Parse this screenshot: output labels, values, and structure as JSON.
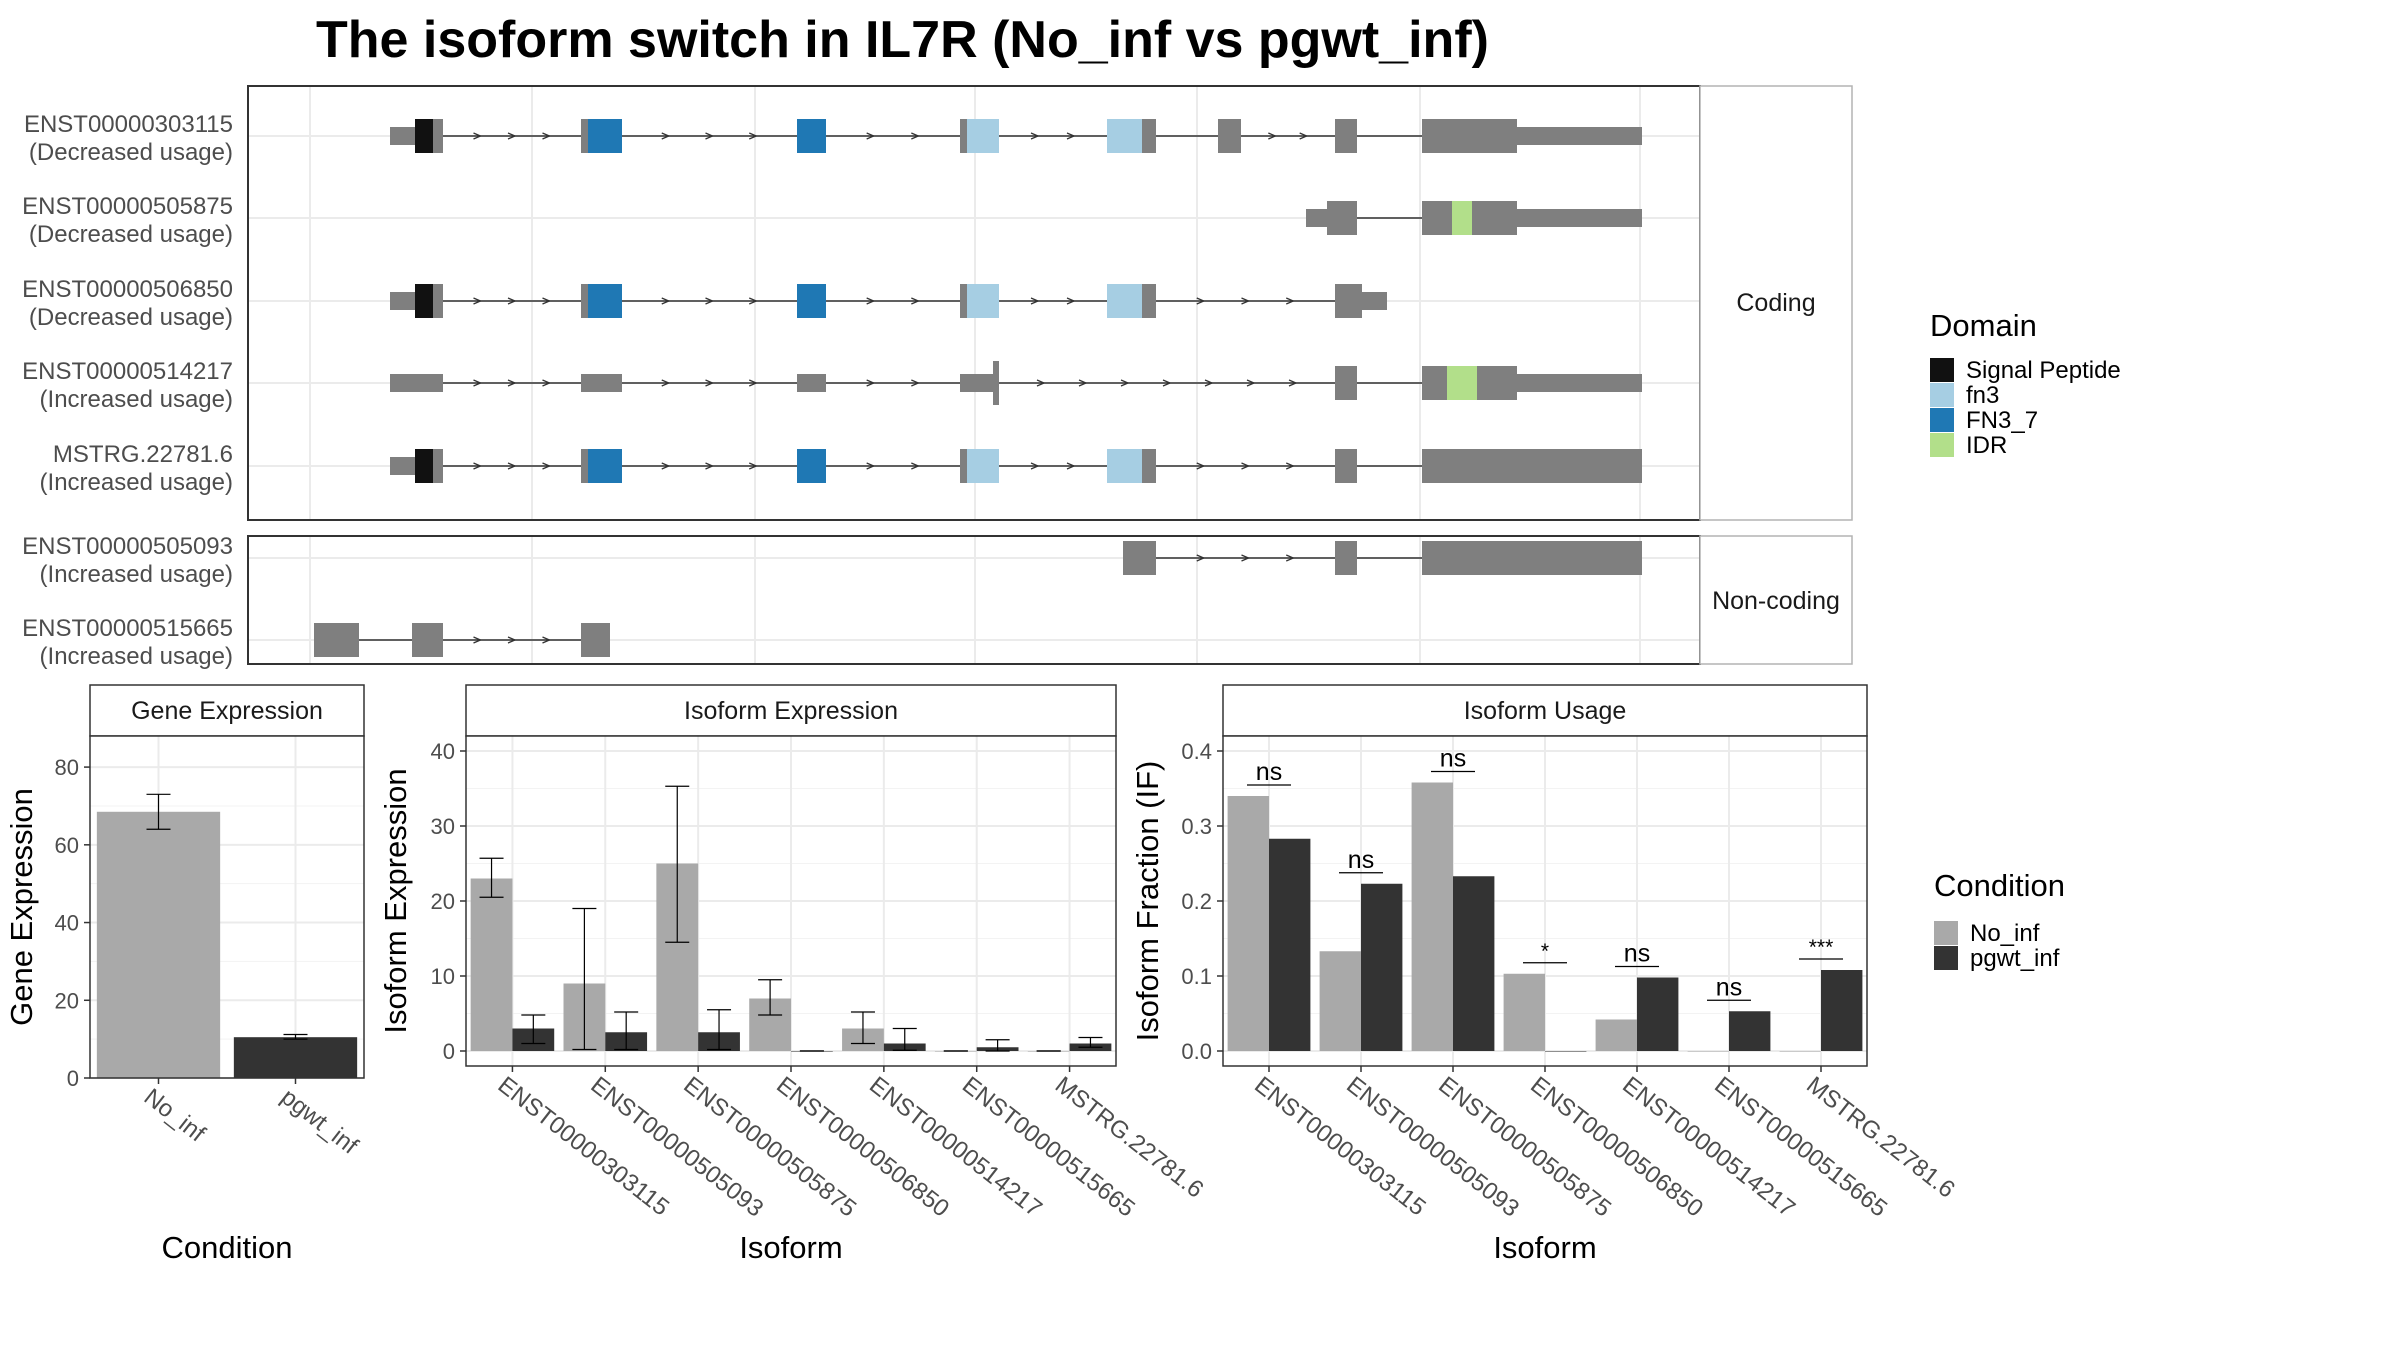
{
  "title": "The isoform switch in IL7R (No_inf vs pgwt_inf)",
  "colors": {
    "exon": "#7f7f7f",
    "intron": "#333333",
    "no_inf": "#a9a9a9",
    "pgwt_inf": "#333333",
    "grid": "#ebebeb",
    "panel_border": "#333333",
    "strip_border": "#b3b3b3"
  },
  "structure": {
    "facets": [
      "Coding",
      "Non-coding"
    ],
    "transcripts": [
      {
        "id": "ENST00000303115",
        "usage": "(Decreased usage)",
        "facet": "Coding"
      },
      {
        "id": "ENST00000505875",
        "usage": "(Decreased usage)",
        "facet": "Coding"
      },
      {
        "id": "ENST00000506850",
        "usage": "(Decreased usage)",
        "facet": "Coding"
      },
      {
        "id": "ENST00000514217",
        "usage": "(Increased usage)",
        "facet": "Coding"
      },
      {
        "id": "MSTRG.22781.6",
        "usage": "(Increased usage)",
        "facet": "Coding"
      },
      {
        "id": "ENST00000505093",
        "usage": "(Increased usage)",
        "facet": "Non-coding"
      },
      {
        "id": "ENST00000515665",
        "usage": "(Increased usage)",
        "facet": "Non-coding"
      }
    ],
    "legend_title": "Domain",
    "domains": [
      {
        "name": "Signal Peptide",
        "color": "#111111"
      },
      {
        "name": "fn3",
        "color": "#a6cee3"
      },
      {
        "name": "FN3_7",
        "color": "#1f78b4"
      },
      {
        "name": "IDR",
        "color": "#b2df8a"
      }
    ]
  },
  "chart_data": [
    {
      "type": "bar",
      "title": "Gene Expression",
      "xlabel": "Condition",
      "ylabel": "Gene Expression",
      "categories": [
        "No_inf",
        "pgwt_inf"
      ],
      "values": [
        68.5,
        10.5
      ],
      "error": [
        [
          64.0,
          73.0
        ],
        [
          10.0,
          11.2
        ]
      ],
      "ylim": [
        0,
        88
      ],
      "yticks": [
        0,
        20,
        40,
        60,
        80
      ]
    },
    {
      "type": "bar",
      "title": "Isoform Expression",
      "xlabel": "Isoform",
      "ylabel": "Isoform Expression",
      "categories": [
        "ENST00000303115",
        "ENST00000505093",
        "ENST00000505875",
        "ENST00000506850",
        "ENST00000514217",
        "ENST00000515665",
        "MSTRG.22781.6"
      ],
      "series": [
        {
          "name": "No_inf",
          "values": [
            23.0,
            9.0,
            25.0,
            7.0,
            3.0,
            0.0,
            0.0
          ],
          "error": [
            [
              20.5,
              25.7
            ],
            [
              0.2,
              19.0
            ],
            [
              14.5,
              35.3
            ],
            [
              4.8,
              9.5
            ],
            [
              1.0,
              5.2
            ],
            [
              0.0,
              0.0
            ],
            [
              0.0,
              0.0
            ]
          ]
        },
        {
          "name": "pgwt_inf",
          "values": [
            3.0,
            2.5,
            2.5,
            0.0,
            1.0,
            0.5,
            1.0
          ],
          "error": [
            [
              1.0,
              4.8
            ],
            [
              0.2,
              5.2
            ],
            [
              0.2,
              5.5
            ],
            [
              0.0,
              0.0
            ],
            [
              0.1,
              3.0
            ],
            [
              0.0,
              1.5
            ],
            [
              0.5,
              1.8
            ]
          ]
        }
      ],
      "ylim": [
        -2,
        42
      ],
      "yticks": [
        0,
        10,
        20,
        30,
        40
      ]
    },
    {
      "type": "bar",
      "title": "Isoform Usage",
      "xlabel": "Isoform",
      "ylabel": "Isoform Fraction (IF)",
      "categories": [
        "ENST00000303115",
        "ENST00000505093",
        "ENST00000505875",
        "ENST00000506850",
        "ENST00000514217",
        "ENST00000515665",
        "MSTRG.22781.6"
      ],
      "series": [
        {
          "name": "No_inf",
          "values": [
            0.34,
            0.133,
            0.358,
            0.103,
            0.042,
            0.0,
            0.0
          ]
        },
        {
          "name": "pgwt_inf",
          "values": [
            0.283,
            0.223,
            0.233,
            0.0,
            0.098,
            0.053,
            0.108
          ]
        }
      ],
      "significance": [
        "ns",
        "ns",
        "ns",
        "*",
        "ns",
        "ns",
        "***"
      ],
      "ylim": [
        -0.02,
        0.42
      ],
      "yticks": [
        "0.0",
        "0.1",
        "0.2",
        "0.3",
        "0.4"
      ]
    }
  ],
  "condition_legend": {
    "title": "Condition",
    "items": [
      {
        "name": "No_inf",
        "color": "#a9a9a9"
      },
      {
        "name": "pgwt_inf",
        "color": "#333333"
      }
    ]
  }
}
